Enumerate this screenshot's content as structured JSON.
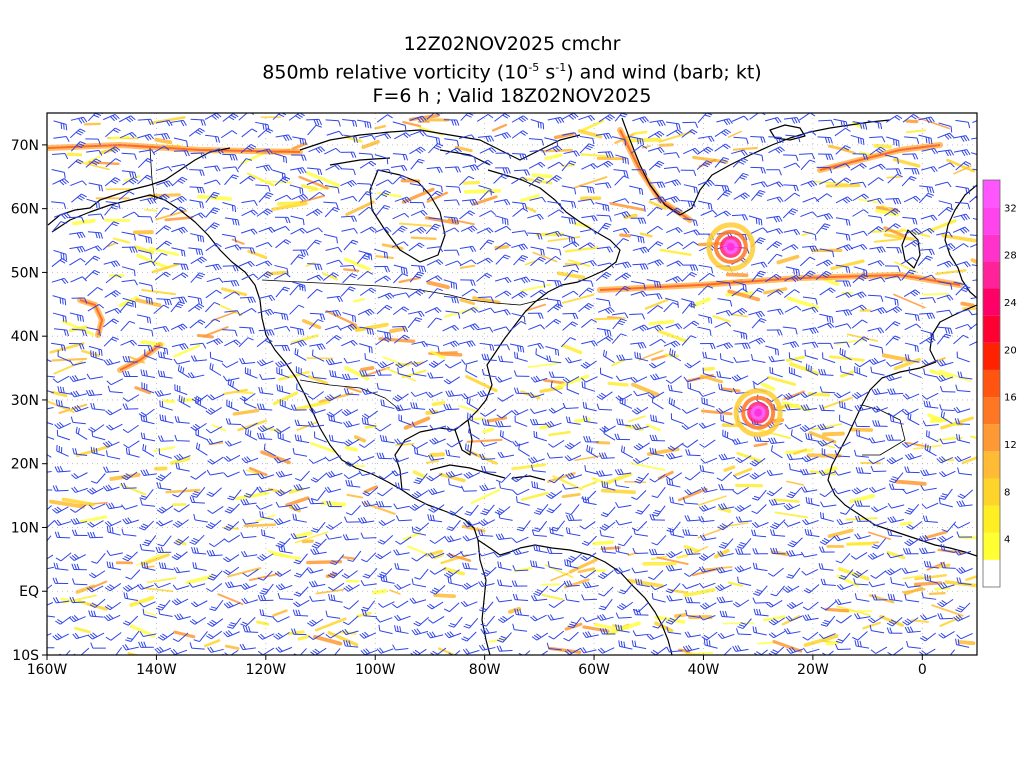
{
  "title": {
    "line1": "12Z02NOV2025 cmchr",
    "line2_pre": "850mb relative vorticity (10",
    "line2_sup1": "-5",
    "line2_mid": " s",
    "line2_sup2": "-1",
    "line2_post": ") and wind (barb; kt)",
    "line3": "F=6 h ; Valid 18Z02NOV2025"
  },
  "map": {
    "lon_range": [
      -160,
      10
    ],
    "lat_range": [
      -10,
      75
    ],
    "lat_labels": [
      {
        "lat": 70,
        "label": "70N"
      },
      {
        "lat": 60,
        "label": "60N"
      },
      {
        "lat": 50,
        "label": "50N"
      },
      {
        "lat": 40,
        "label": "40N"
      },
      {
        "lat": 30,
        "label": "30N"
      },
      {
        "lat": 20,
        "label": "20N"
      },
      {
        "lat": 10,
        "label": "10N"
      },
      {
        "lat": 0,
        "label": "EQ"
      },
      {
        "lat": -10,
        "label": "10S"
      }
    ],
    "lon_labels": [
      {
        "lon": -160,
        "label": "160W"
      },
      {
        "lon": -140,
        "label": "140W"
      },
      {
        "lon": -120,
        "label": "120W"
      },
      {
        "lon": -100,
        "label": "100W"
      },
      {
        "lon": -80,
        "label": "80W"
      },
      {
        "lon": -60,
        "label": "60W"
      },
      {
        "lon": -40,
        "label": "40W"
      },
      {
        "lon": -20,
        "label": "20W"
      },
      {
        "lon": 0,
        "label": "0"
      }
    ],
    "colors": {
      "barb": "#2f44e8",
      "coast": "#000000",
      "grid": "#b0b0b0"
    }
  },
  "colorbar": {
    "levels": [
      "4",
      "8",
      "12",
      "16",
      "20",
      "24",
      "28",
      "32"
    ],
    "colors": [
      "#ffffff",
      "#ffff33",
      "#ffee22",
      "#ffd42a",
      "#ffbb33",
      "#ff9933",
      "#ff7722",
      "#ff5511",
      "#ff2200",
      "#ff0033",
      "#ff0066",
      "#ff2299",
      "#ff33cc",
      "#ff44ee",
      "#ff55ff"
    ]
  },
  "features": {
    "storms": [
      {
        "name": "north-atlantic-low",
        "lon": -35,
        "lat": 54
      },
      {
        "name": "subtropical-cyclone",
        "lon": -30,
        "lat": 28
      }
    ]
  }
}
